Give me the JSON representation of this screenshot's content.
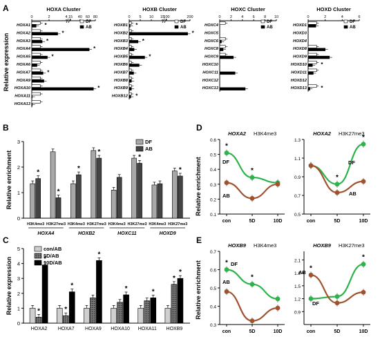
{
  "figure": {
    "panel_labels": [
      "A",
      "B",
      "C",
      "D",
      "E"
    ]
  },
  "chart_data": [
    {
      "panel": "A",
      "type": "bar",
      "orientation": "horizontal",
      "group_titles": [
        "HOXA Cluster",
        "HOXB Cluster",
        "HOXC Cluster",
        "HOXD Cluster"
      ],
      "ylabel": "Relative expression",
      "legend": [
        "DF",
        "AB"
      ],
      "groups": [
        {
          "title": "HOXA Cluster",
          "ticks": [
            "0",
            "2",
            "4",
            "15",
            "40",
            "60",
            "80"
          ],
          "axis_break": [
            4,
            15
          ],
          "genes": [
            "HOXA1",
            "HOXA2",
            "HOXA3",
            "HOXA4",
            "HOXA5",
            "HOXA6",
            "HOXA7",
            "HOXA9",
            "HOXA10",
            "HOXA11",
            "HOXA13"
          ],
          "DF": [
            1,
            1,
            1,
            1,
            1,
            1,
            1,
            1,
            1,
            1,
            1
          ],
          "AB": [
            0.5,
            3.0,
            1.2,
            64,
            1.8,
            0.6,
            1.3,
            1.4,
            75,
            0.05,
            0.05
          ],
          "star": [
            true,
            true,
            true,
            true,
            true,
            false,
            true,
            false,
            true,
            false,
            false
          ]
        },
        {
          "title": "HOXB Cluster",
          "ticks": [
            "0",
            "5",
            "10",
            "15",
            "100",
            "200"
          ],
          "axis_break": [
            15,
            100
          ],
          "genes": [
            "HOXB1",
            "HOXB2",
            "HOXB3",
            "HOXB4",
            "HOXB5",
            "HOXB6",
            "HOXB7",
            "HOXB8",
            "HOXB9",
            "HOXB12"
          ],
          "DF": [
            1,
            1,
            1,
            1,
            1,
            1,
            1,
            1,
            1,
            1
          ],
          "AB": [
            0.4,
            190,
            4.0,
            2.2,
            7.0,
            4.5,
            2.0,
            1.0,
            1.0,
            0.7
          ],
          "star": [
            true,
            true,
            true,
            false,
            true,
            false,
            false,
            false,
            false,
            true
          ]
        },
        {
          "title": "HOXC Cluster",
          "ticks": [
            "0",
            "2",
            "4",
            "6",
            "8",
            "10"
          ],
          "genes": [
            "HOXC4",
            "HOXC5",
            "HOXC6",
            "HOXC8",
            "HOXC9",
            "HOXC10",
            "HOXC11",
            "HOXC12",
            "HOXC13"
          ],
          "DF": [
            1,
            0,
            1,
            1,
            1,
            0,
            0,
            0,
            0
          ],
          "AB": [
            0,
            0,
            0.3,
            0.6,
            2.4,
            0,
            2.7,
            0,
            4.5
          ],
          "star": [
            false,
            false,
            false,
            false,
            false,
            false,
            false,
            false,
            false
          ]
        },
        {
          "title": "HOXD Cluster",
          "ticks": [
            "0",
            "2",
            "4",
            "6"
          ],
          "genes": [
            "HOXD1",
            "HOXD3",
            "HOXD4",
            "HOXD8",
            "HOXD9",
            "HOXD10",
            "HOXD11",
            "HOXD12",
            "HOXD13"
          ],
          "DF": [
            1,
            0,
            0,
            1,
            1,
            1,
            1,
            0,
            1
          ],
          "AB": [
            0.9,
            0,
            0,
            2.0,
            2.5,
            0.5,
            0.6,
            0,
            0.2
          ],
          "star": [
            false,
            false,
            false,
            false,
            false,
            true,
            false,
            false,
            true
          ]
        }
      ]
    },
    {
      "panel": "B",
      "type": "bar",
      "ylabel": "Relative enrichment",
      "ylim": [
        0,
        3
      ],
      "yticks": [
        "0",
        "1",
        "2",
        "3"
      ],
      "legend": [
        "DF",
        "AB"
      ],
      "categories": [
        "H3K4me3",
        "H3K27me3",
        "H3K4me3",
        "H3K27me3",
        "H3K4me3",
        "H3K27me3",
        "H3K4me3",
        "H3K27me3"
      ],
      "gene_groups": [
        "HOXA4",
        "HOXB2",
        "HOXC11",
        "HOXD9"
      ],
      "series": [
        {
          "name": "DF",
          "values": [
            1.35,
            2.6,
            1.35,
            2.65,
            1.1,
            2.35,
            1.3,
            1.85
          ]
        },
        {
          "name": "AB",
          "values": [
            1.55,
            0.8,
            1.7,
            2.35,
            1.6,
            2.15,
            1.35,
            1.65
          ]
        }
      ],
      "star": [
        true,
        true,
        true,
        true,
        false,
        true,
        false,
        true
      ]
    },
    {
      "panel": "C",
      "type": "bar",
      "ylabel": "Relative expression",
      "ylim": [
        0,
        5
      ],
      "yticks": [
        "0",
        "1",
        "2",
        "3",
        "4",
        "5"
      ],
      "legend": [
        "con/AB",
        "5D/AB",
        "10D/AB"
      ],
      "categories": [
        "HOXA2",
        "HOXA7",
        "HOXA9",
        "HOXA10",
        "HOXA11",
        "HOXB9"
      ],
      "series": [
        {
          "name": "con/AB",
          "values": [
            1.0,
            1.0,
            1.0,
            1.0,
            1.0,
            1.0
          ]
        },
        {
          "name": "5D/AB",
          "values": [
            0.4,
            0.5,
            1.7,
            1.4,
            1.5,
            2.6
          ]
        },
        {
          "name": "10D/AB",
          "values": [
            3.9,
            2.1,
            4.2,
            1.9,
            1.7,
            3.0
          ]
        }
      ],
      "star": [
        [
          false,
          true,
          true
        ],
        [
          false,
          true,
          true
        ],
        [
          false,
          false,
          true
        ],
        [
          false,
          false,
          true
        ],
        [
          false,
          false,
          true
        ],
        [
          false,
          true,
          true
        ]
      ]
    },
    {
      "panel": "D",
      "type": "line",
      "ylabel": "Relative enrichment",
      "subplots": [
        {
          "gene": "HOXA2",
          "mark": "H3K4me3",
          "categories": [
            "con",
            "5D",
            "10D"
          ],
          "ylim": [
            0.1,
            0.6
          ],
          "yticks": [
            "0.1",
            "0.2",
            "0.3",
            "0.4",
            "0.5",
            "0.6"
          ],
          "series": [
            {
              "name": "DF",
              "color": "#2db34a",
              "values": [
                0.51,
                0.345,
                0.31
              ]
            },
            {
              "name": "AB",
              "color": "#a0522d",
              "values": [
                0.31,
                0.205,
                0.3
              ]
            }
          ],
          "star": [
            true,
            true,
            false
          ]
        },
        {
          "gene": "HOXA2",
          "mark": "H3K27me3",
          "categories": [
            "con",
            "5D",
            "10D"
          ],
          "ylim": [
            0.5,
            1.3
          ],
          "yticks": [
            "0.5",
            "0.7",
            "0.9",
            "1.1",
            "1.3"
          ],
          "series": [
            {
              "name": "DF",
              "color": "#2db34a",
              "values": [
                1.02,
                0.82,
                1.25
              ]
            },
            {
              "name": "AB",
              "color": "#a0522d",
              "values": [
                1.02,
                0.73,
                0.85
              ]
            }
          ],
          "star": [
            false,
            true,
            true
          ]
        }
      ]
    },
    {
      "panel": "E",
      "type": "line",
      "ylabel": "Relative enrichment",
      "subplots": [
        {
          "gene": "HOXB9",
          "mark": "H3K4me3",
          "categories": [
            "con",
            "5D",
            "10D"
          ],
          "ylim": [
            0.3,
            0.7
          ],
          "yticks": [
            "0.3",
            "0.4",
            "0.5",
            "0.6",
            "0.7"
          ],
          "series": [
            {
              "name": "DF",
              "color": "#2db34a",
              "values": [
                0.6,
                0.52,
                0.44
              ]
            },
            {
              "name": "AB",
              "color": "#a0522d",
              "values": [
                0.48,
                0.32,
                0.39
              ]
            }
          ],
          "star": [
            true,
            true,
            false
          ]
        },
        {
          "gene": "HOXB9",
          "mark": "H3K27me3",
          "categories": [
            "con",
            "5D",
            "10D"
          ],
          "ylim": [
            0.6,
            2.3
          ],
          "yticks": [
            "0.9",
            "1.2",
            "1.5",
            "1.8",
            "2.1"
          ],
          "series": [
            {
              "name": "DF",
              "color": "#2db34a",
              "values": [
                1.2,
                1.25,
                2.0
              ]
            },
            {
              "name": "AB",
              "color": "#a0522d",
              "values": [
                1.75,
                1.1,
                1.35
              ]
            }
          ],
          "star": [
            true,
            false,
            true
          ]
        }
      ]
    }
  ]
}
